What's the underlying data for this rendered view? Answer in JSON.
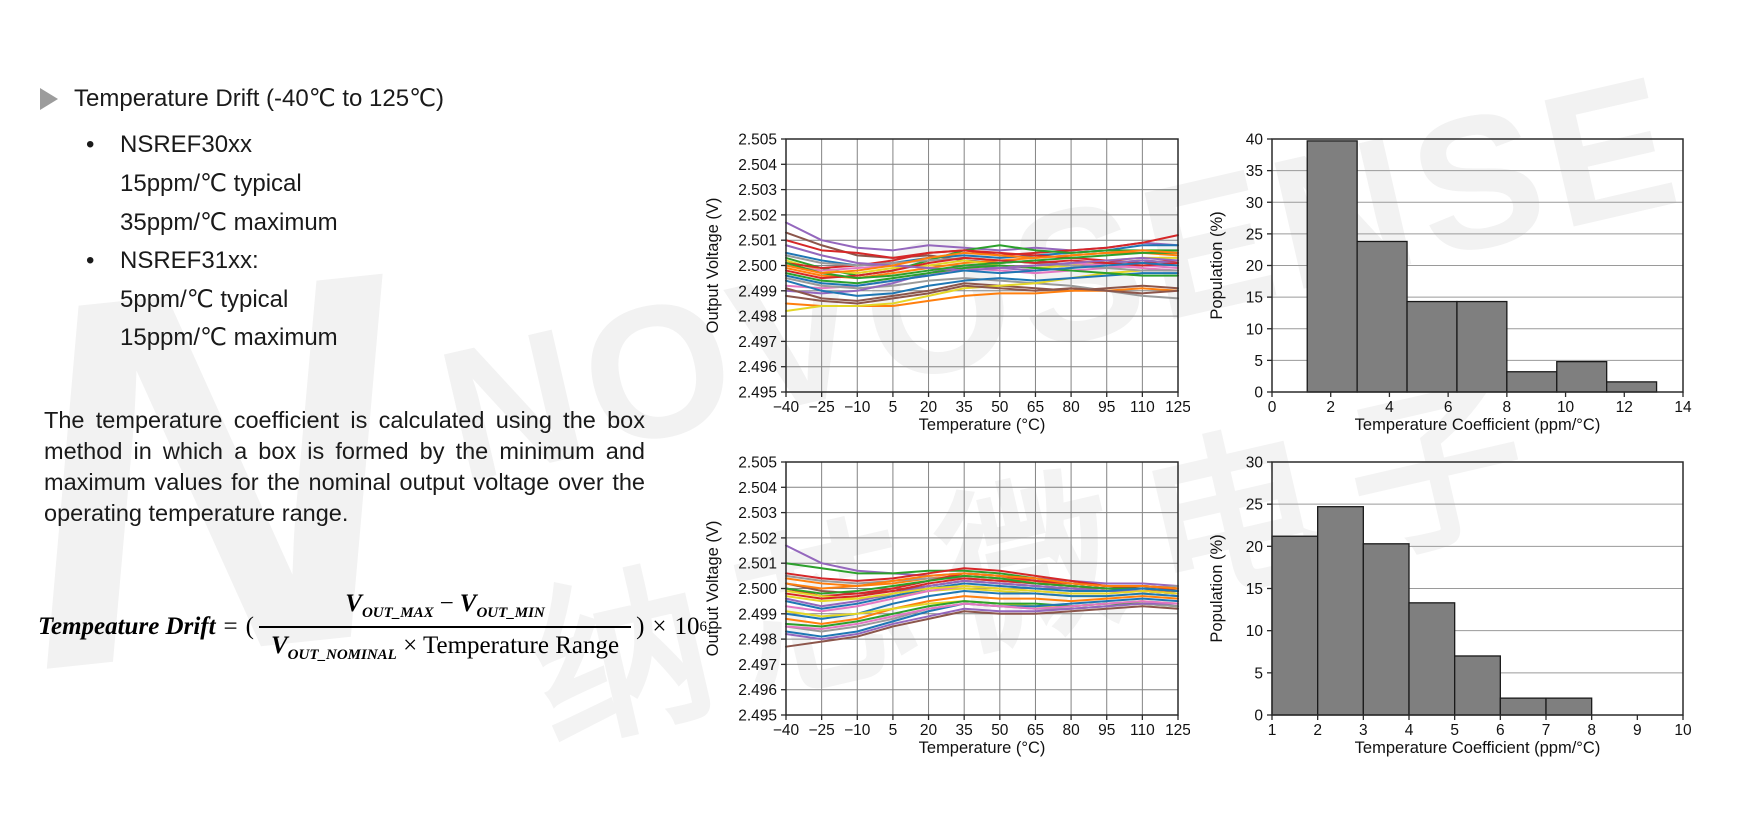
{
  "watermark": {
    "letter": "N",
    "brand": "NOVOSENSE",
    "cjk": "纳芯微电子",
    "color": "#f2f2f2"
  },
  "content": {
    "title": "Temperature Drift (-40℃ to 125℃)",
    "bullets": [
      {
        "label": "NSREF30xx",
        "lines": [
          "15ppm/℃ typical",
          "35ppm/℃ maximum"
        ]
      },
      {
        "label": "NSREF31xx:",
        "lines": [
          "5ppm/℃ typical",
          "15ppm/℃ maximum"
        ]
      }
    ],
    "paragraph": "The temperature coefficient is calculated using the box method in which a box is formed by the minimum and maximum values for the nominal output voltage over the operating temperature range.",
    "formula": {
      "lhs": "Tempeature Drift",
      "eq": "=",
      "lparen": "(",
      "num": {
        "v1": "V",
        "s1": "OUT_MAX",
        "op": "−",
        "v2": "V",
        "s2": "OUT_MIN"
      },
      "den": {
        "v": "V",
        "s": "OUT_NOMINAL",
        "rest": "× Temperature Range"
      },
      "rparen": ")",
      "times": "×",
      "base": "10",
      "exp": "6"
    }
  },
  "chart_data": [
    {
      "type": "line",
      "xlabel": "Temperature (°C)",
      "ylabel": "Output Voltage (V)",
      "xlim": [
        -40,
        125
      ],
      "ylim": [
        2.495,
        2.505
      ],
      "xticks": [
        -40,
        -25,
        -10,
        5,
        20,
        35,
        50,
        65,
        80,
        95,
        110,
        125
      ],
      "yticks": [
        2.495,
        2.496,
        2.497,
        2.498,
        2.499,
        2.5,
        2.501,
        2.502,
        2.503,
        2.504,
        2.505
      ],
      "ytick_decimals": 3,
      "grid": "both",
      "x": [
        -40,
        -25,
        -10,
        5,
        20,
        35,
        50,
        65,
        80,
        95,
        110,
        125
      ],
      "series": [
        {
          "color": "#9467bd",
          "values": [
            2.5017,
            2.501,
            2.5007,
            2.5006,
            2.5008,
            2.5007,
            2.5006,
            2.5007,
            2.5006,
            2.5007,
            2.5009,
            2.5008
          ]
        },
        {
          "color": "#8c564b",
          "values": [
            2.5013,
            2.5008,
            2.5004,
            2.5003,
            2.5004,
            2.5002,
            2.5001,
            2.5002,
            2.5,
            2.5001,
            2.5002,
            2.5001
          ]
        },
        {
          "color": "#d62728",
          "values": [
            2.501,
            2.5006,
            2.5005,
            2.5003,
            2.5005,
            2.5006,
            2.5004,
            2.5005,
            2.5006,
            2.5007,
            2.5009,
            2.5012
          ]
        },
        {
          "color": "#1f77b4",
          "values": [
            2.5005,
            2.5002,
            2.5,
            2.5001,
            2.5003,
            2.5004,
            2.5003,
            2.5004,
            2.5005,
            2.5006,
            2.5008,
            2.5008
          ]
        },
        {
          "color": "#2ca02c",
          "values": [
            2.5003,
            2.4999,
            2.4996,
            2.4998,
            2.5002,
            2.5006,
            2.5008,
            2.5006,
            2.5005,
            2.5006,
            2.5006,
            2.5006
          ]
        },
        {
          "color": "#ff7f0e",
          "values": [
            2.4999,
            2.4996,
            2.4995,
            2.4997,
            2.4999,
            2.5001,
            2.5002,
            2.5003,
            2.5004,
            2.5005,
            2.5005,
            2.5004
          ]
        },
        {
          "color": "#e3d626",
          "values": [
            2.5002,
            2.4998,
            2.4997,
            2.4999,
            2.5,
            2.5002,
            2.5,
            2.4999,
            2.5,
            2.5002,
            2.5003,
            2.5003
          ]
        },
        {
          "color": "#e377c2",
          "values": [
            2.4992,
            2.4991,
            2.4992,
            2.4994,
            2.4996,
            2.4999,
            2.4998,
            2.4997,
            2.4998,
            2.4999,
            2.5,
            2.4999
          ]
        },
        {
          "color": "#9a9a9a",
          "values": [
            2.4995,
            2.4992,
            2.4991,
            2.4992,
            2.4994,
            2.4995,
            2.4994,
            2.4993,
            2.4992,
            2.499,
            2.4988,
            2.4987
          ]
        },
        {
          "color": "#d62728",
          "values": [
            2.5001,
            2.4999,
            2.5,
            2.5002,
            2.5005,
            2.5006,
            2.5005,
            2.5004,
            2.5003,
            2.5002,
            2.5001,
            2.5002
          ]
        },
        {
          "color": "#9467bd",
          "values": [
            2.499,
            2.4989,
            2.499,
            2.4993,
            2.4997,
            2.5,
            2.4999,
            2.4998,
            2.4999,
            2.5001,
            2.5002,
            2.5001
          ]
        },
        {
          "color": "#8c564b",
          "values": [
            2.4991,
            2.4987,
            2.4986,
            2.4988,
            2.499,
            2.4993,
            2.4992,
            2.4991,
            2.499,
            2.4991,
            2.4992,
            2.4991
          ]
        },
        {
          "color": "#ff7f0e",
          "values": [
            2.4985,
            2.4984,
            2.4984,
            2.4984,
            2.4986,
            2.4988,
            2.4989,
            2.4989,
            2.499,
            2.499,
            2.4991,
            2.499
          ]
        },
        {
          "color": "#e3d626",
          "values": [
            2.4982,
            2.4984,
            2.4984,
            2.4985,
            2.4988,
            2.4991,
            2.4992,
            2.4993,
            2.4995,
            2.4997,
            2.4998,
            2.4998
          ]
        },
        {
          "color": "#1f77b4",
          "values": [
            2.4994,
            2.499,
            2.4988,
            2.4989,
            2.4992,
            2.4994,
            2.4995,
            2.4994,
            2.4995,
            2.4996,
            2.4997,
            2.4997
          ]
        },
        {
          "color": "#2ca02c",
          "values": [
            2.4997,
            2.4994,
            2.4993,
            2.4995,
            2.4997,
            2.4999,
            2.5,
            2.4999,
            2.4998,
            2.4997,
            2.4996,
            2.4996
          ]
        },
        {
          "color": "#e377c2",
          "values": [
            2.5,
            2.4998,
            2.4999,
            2.5,
            2.4999,
            2.4998,
            2.4999,
            2.5,
            2.5001,
            2.5,
            2.4999,
            2.4998
          ]
        },
        {
          "color": "#9a9a9a",
          "values": [
            2.5004,
            2.5001,
            2.5,
            2.5001,
            2.5002,
            2.5003,
            2.5002,
            2.5001,
            2.5,
            2.4999,
            2.4998,
            2.4998
          ]
        },
        {
          "color": "#d62728",
          "values": [
            2.4998,
            2.4995,
            2.4996,
            2.4998,
            2.5001,
            2.5003,
            2.5002,
            2.5001,
            2.5002,
            2.5001,
            2.5,
            2.5001
          ]
        },
        {
          "color": "#9467bd",
          "values": [
            2.5008,
            2.5004,
            2.5001,
            2.5,
            2.4999,
            2.4998,
            2.4999,
            2.5,
            2.5001,
            2.5002,
            2.5003,
            2.5002
          ]
        },
        {
          "color": "#8c564b",
          "values": [
            2.4988,
            2.4986,
            2.4985,
            2.4987,
            2.4989,
            2.4992,
            2.4991,
            2.499,
            2.4991,
            2.499,
            2.4989,
            2.499
          ]
        },
        {
          "color": "#1f77b4",
          "values": [
            2.4996,
            2.4993,
            2.4992,
            2.4994,
            2.4996,
            2.4998,
            2.4997,
            2.4998,
            2.4999,
            2.5,
            2.5001,
            2.5
          ]
        },
        {
          "color": "#2ca02c",
          "values": [
            2.5001,
            2.4997,
            2.4995,
            2.4996,
            2.4998,
            2.5,
            2.5001,
            2.5002,
            2.5003,
            2.5004,
            2.5005,
            2.5005
          ]
        },
        {
          "color": "#ff7f0e",
          "values": [
            2.5,
            2.4997,
            2.4998,
            2.5,
            2.5003,
            2.5005,
            2.5004,
            2.5003,
            2.5004,
            2.5005,
            2.5006,
            2.5005
          ]
        }
      ]
    },
    {
      "type": "line",
      "xlabel": "Temperature (°C)",
      "ylabel": "Output Voltage (V)",
      "xlim": [
        -40,
        125
      ],
      "ylim": [
        2.495,
        2.505
      ],
      "xticks": [
        -40,
        -25,
        -10,
        5,
        20,
        35,
        50,
        65,
        80,
        95,
        110,
        125
      ],
      "yticks": [
        2.495,
        2.496,
        2.497,
        2.498,
        2.499,
        2.5,
        2.501,
        2.502,
        2.503,
        2.504,
        2.505
      ],
      "ytick_decimals": 3,
      "grid": "both",
      "x": [
        -40,
        -25,
        -10,
        5,
        20,
        35,
        50,
        65,
        80,
        95,
        110,
        125
      ],
      "series": [
        {
          "color": "#9467bd",
          "values": [
            2.5017,
            2.501,
            2.5007,
            2.5006,
            2.5005,
            2.5006,
            2.5005,
            2.5004,
            2.5003,
            2.5002,
            2.5002,
            2.5001
          ]
        },
        {
          "color": "#2ca02c",
          "values": [
            2.501,
            2.5008,
            2.5006,
            2.5006,
            2.5007,
            2.5007,
            2.5006,
            2.5004,
            2.5002,
            2.5001,
            2.5001,
            2.5
          ]
        },
        {
          "color": "#d62728",
          "values": [
            2.5006,
            2.5004,
            2.5003,
            2.5004,
            2.5006,
            2.5008,
            2.5007,
            2.5005,
            2.5003,
            2.5001,
            2.5,
            2.5
          ]
        },
        {
          "color": "#ff7f0e",
          "values": [
            2.5004,
            2.5002,
            2.5001,
            2.5002,
            2.5004,
            2.5005,
            2.5004,
            2.5003,
            2.5001,
            2.5,
            2.4999,
            2.4999
          ]
        },
        {
          "color": "#9a9a9a",
          "values": [
            2.5005,
            2.5003,
            2.5002,
            2.5003,
            2.5004,
            2.5004,
            2.5003,
            2.5002,
            2.5001,
            2.5,
            2.5,
            2.5001
          ]
        },
        {
          "color": "#8c564b",
          "values": [
            2.5002,
            2.4999,
            2.4998,
            2.4999,
            2.5001,
            2.5003,
            2.5002,
            2.5001,
            2.5,
            2.4999,
            2.4999,
            2.4998
          ]
        },
        {
          "color": "#d62728",
          "values": [
            2.5,
            2.4997,
            2.4998,
            2.5,
            2.5003,
            2.5006,
            2.5005,
            2.5003,
            2.5002,
            2.5001,
            2.5001,
            2.5
          ]
        },
        {
          "color": "#e3d626",
          "values": [
            2.4999,
            2.4997,
            2.4996,
            2.4997,
            2.4999,
            2.5,
            2.4999,
            2.4998,
            2.4997,
            2.4997,
            2.4998,
            2.4997
          ]
        },
        {
          "color": "#9467bd",
          "values": [
            2.4996,
            2.4993,
            2.4995,
            2.4998,
            2.5001,
            2.5003,
            2.5002,
            2.5001,
            2.5,
            2.4999,
            2.4999,
            2.4998
          ]
        },
        {
          "color": "#1f77b4",
          "values": [
            2.499,
            2.4988,
            2.499,
            2.4994,
            2.4997,
            2.4999,
            2.4998,
            2.4998,
            2.4997,
            2.4997,
            2.4998,
            2.4997
          ]
        },
        {
          "color": "#e377c2",
          "values": [
            2.4993,
            2.4991,
            2.4993,
            2.4996,
            2.4999,
            2.5001,
            2.5,
            2.4999,
            2.4998,
            2.4998,
            2.4999,
            2.4998
          ]
        },
        {
          "color": "#ff7f0e",
          "values": [
            2.4988,
            2.4986,
            2.4988,
            2.4992,
            2.4995,
            2.4997,
            2.4996,
            2.4996,
            2.4995,
            2.4996,
            2.4997,
            2.4996
          ]
        },
        {
          "color": "#e3d626",
          "values": [
            2.4991,
            2.4989,
            2.499,
            2.4992,
            2.4994,
            2.4995,
            2.4994,
            2.4993,
            2.4993,
            2.4994,
            2.4995,
            2.4994
          ]
        },
        {
          "color": "#2ca02c",
          "values": [
            2.4986,
            2.4985,
            2.4987,
            2.499,
            2.4993,
            2.4995,
            2.4994,
            2.4994,
            2.4993,
            2.4994,
            2.4994,
            2.4993
          ]
        },
        {
          "color": "#1f77b4",
          "values": [
            2.4983,
            2.4981,
            2.4983,
            2.4987,
            2.4991,
            2.4994,
            2.4993,
            2.4993,
            2.4994,
            2.4995,
            2.4996,
            2.4995
          ]
        },
        {
          "color": "#9a9a9a",
          "values": [
            2.4985,
            2.4983,
            2.4985,
            2.4988,
            2.4992,
            2.4994,
            2.4993,
            2.4992,
            2.4992,
            2.4993,
            2.4994,
            2.4993
          ]
        },
        {
          "color": "#9467bd",
          "values": [
            2.4982,
            2.498,
            2.4982,
            2.4986,
            2.4989,
            2.4992,
            2.4991,
            2.4991,
            2.4992,
            2.4993,
            2.4994,
            2.4994
          ]
        },
        {
          "color": "#8c564b",
          "values": [
            2.4977,
            2.4979,
            2.4981,
            2.4985,
            2.4988,
            2.4991,
            2.499,
            2.499,
            2.4991,
            2.4992,
            2.4993,
            2.4992
          ]
        },
        {
          "color": "#d62728",
          "values": [
            2.4998,
            2.4996,
            2.4997,
            2.4999,
            2.5002,
            2.5004,
            2.5003,
            2.5002,
            2.5001,
            2.5,
            2.5,
            2.4999
          ]
        },
        {
          "color": "#e377c2",
          "values": [
            2.4985,
            2.4984,
            2.4986,
            2.4989,
            2.4992,
            2.4994,
            2.4993,
            2.4992,
            2.4993,
            2.4994,
            2.4995,
            2.4994
          ]
        },
        {
          "color": "#2ca02c",
          "values": [
            2.5,
            2.4998,
            2.4999,
            2.5001,
            2.5003,
            2.5005,
            2.5004,
            2.5002,
            2.5001,
            2.5,
            2.5,
            2.4999
          ]
        },
        {
          "color": "#1f77b4",
          "values": [
            2.4995,
            2.4992,
            2.4994,
            2.4997,
            2.5,
            2.5002,
            2.5001,
            2.5,
            2.4999,
            2.4999,
            2.5,
            2.4999
          ]
        },
        {
          "color": "#e3d626",
          "values": [
            2.4997,
            2.4995,
            2.4996,
            2.4998,
            2.5,
            2.5001,
            2.5,
            2.4999,
            2.4998,
            2.4998,
            2.4999,
            2.4998
          ]
        },
        {
          "color": "#ff7f0e",
          "values": [
            2.5002,
            2.5,
            2.5001,
            2.5003,
            2.5005,
            2.5006,
            2.5005,
            2.5004,
            2.5002,
            2.5001,
            2.5001,
            2.5
          ]
        }
      ]
    },
    {
      "type": "bar",
      "xlabel": "Temperature Coefficient (ppm/°C)",
      "ylabel": "Population (%)",
      "xlim": [
        0,
        14
      ],
      "ylim": [
        0,
        40
      ],
      "xticks": [
        0,
        2,
        4,
        6,
        8,
        10,
        12,
        14
      ],
      "yticks": [
        0,
        5,
        10,
        15,
        20,
        25,
        30,
        35,
        40
      ],
      "bin_start": 1.2,
      "bin_width": 1.7,
      "values": [
        39.7,
        23.8,
        14.3,
        14.3,
        3.2,
        4.8,
        1.6
      ],
      "bar_color": "#7f7f7f",
      "bar_edge": "#1a1a1a",
      "grid": "y"
    },
    {
      "type": "bar",
      "xlabel": "Temperature Coefficient (ppm/°C)",
      "ylabel": "Population (%)",
      "xlim": [
        1,
        10
      ],
      "ylim": [
        0,
        30
      ],
      "xticks": [
        1,
        2,
        3,
        4,
        5,
        6,
        7,
        8,
        9,
        10
      ],
      "yticks": [
        0,
        5,
        10,
        15,
        20,
        25,
        30
      ],
      "bin_start": 1,
      "bin_width": 1,
      "values": [
        21.2,
        24.7,
        20.3,
        13.3,
        7.0,
        2.0,
        2.0
      ],
      "bar_color": "#7f7f7f",
      "bar_edge": "#1a1a1a",
      "grid": "y"
    }
  ]
}
